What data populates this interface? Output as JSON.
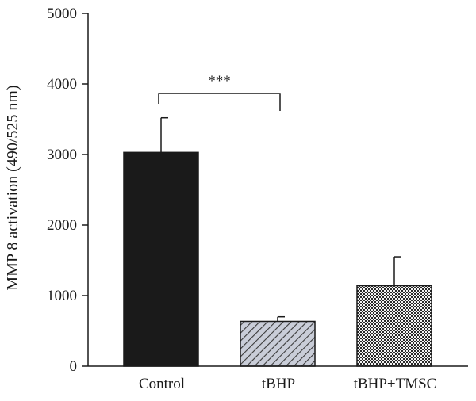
{
  "chart_data": {
    "type": "bar",
    "title": "",
    "xlabel": "",
    "ylabel": "MMP 8 activation (490/525 nm)",
    "ylim": [
      0,
      5000
    ],
    "yticks": [
      0,
      1000,
      2000,
      3000,
      4000,
      5000
    ],
    "grid": false,
    "categories": [
      "Control",
      "tBHP",
      "tBHP+TMSC"
    ],
    "values": [
      3030,
      635,
      1140
    ],
    "error_upper": [
      490,
      65,
      410
    ],
    "bar_fills": [
      "solid-black",
      "diagonal-hatch",
      "crosshatch"
    ],
    "bar_colors": [
      "#1a1a1a",
      "#c5cad6",
      "#e0e0e0"
    ],
    "significance": [
      {
        "from": "Control",
        "to": "tBHP",
        "label": "***"
      }
    ]
  }
}
